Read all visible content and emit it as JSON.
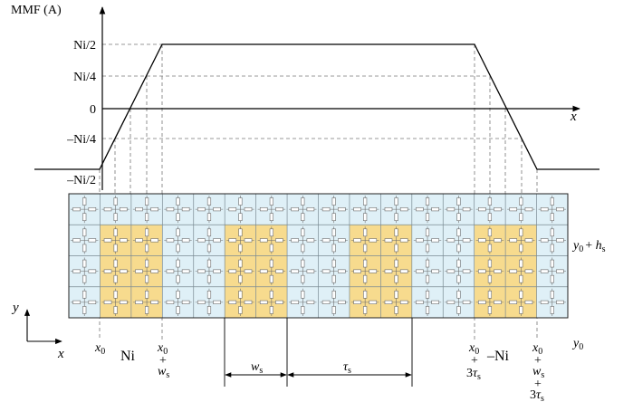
{
  "mmf_plot": {
    "y_axis_label": "MMF (A)",
    "x_axis_label": "x",
    "y_ticks": [
      "Ni/2",
      "Ni/4",
      "0",
      "–Ni/4",
      "–Ni/2"
    ],
    "waveform_levels": [
      "–Ni/2",
      "Ni/2",
      "–Ni/2"
    ]
  },
  "grid": {
    "columns": 16,
    "rows": 4,
    "slot_columns": [
      1,
      2,
      5,
      6,
      9,
      10,
      13,
      14
    ],
    "colors": {
      "background": "#dff0f7",
      "slot_fill": "#f7db8e",
      "grid_line": "#7a8a93",
      "resistor": "#6b6b6b"
    }
  },
  "labels": {
    "y_axis": "y",
    "x_axis": "x",
    "x0": "x",
    "x0_sub": "0",
    "ni_pos": "Ni",
    "ni_neg": "–Ni",
    "plus": "+",
    "ws_main": "w",
    "ws_sub": "s",
    "three": "3",
    "tau": "τ",
    "tau_sub": "s",
    "y0": "y",
    "y0_sub": "0",
    "y0_hs_plus": "+ ",
    "hs_main": "h",
    "hs_sub": "s"
  }
}
